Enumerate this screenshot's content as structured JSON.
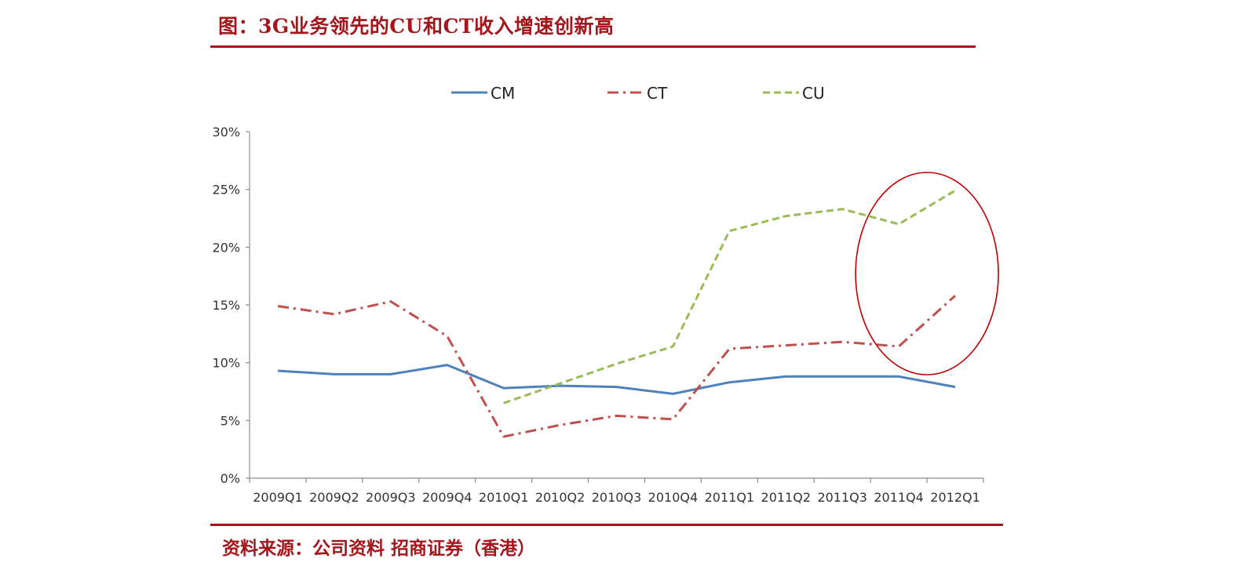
{
  "title": "图：3G业务领先的CU和CT收入增速创新高",
  "source": "资料来源：公司资料 招商证券（香港）",
  "chart_data": {
    "type": "line",
    "categories": [
      "2009Q1",
      "2009Q2",
      "2009Q3",
      "2009Q4",
      "2010Q1",
      "2010Q2",
      "2010Q3",
      "2010Q4",
      "2011Q1",
      "2011Q2",
      "2011Q3",
      "2011Q4",
      "2012Q1"
    ],
    "ylim": [
      0,
      30
    ],
    "yticks": [
      "0%",
      "5%",
      "10%",
      "15%",
      "20%",
      "25%",
      "30%"
    ],
    "grid": false,
    "legend_position": "top",
    "series": [
      {
        "name": "CM",
        "color": "#4f81bd",
        "style": "solid",
        "values": [
          9.3,
          9.0,
          9.0,
          9.8,
          7.8,
          8.0,
          7.9,
          7.3,
          8.3,
          8.8,
          8.8,
          8.8,
          7.9
        ]
      },
      {
        "name": "CT",
        "color": "#c0504d",
        "style": "dash-dot",
        "values": [
          14.9,
          14.2,
          15.3,
          12.3,
          3.6,
          4.6,
          5.4,
          5.1,
          11.2,
          11.5,
          11.8,
          11.4,
          15.8
        ]
      },
      {
        "name": "CU",
        "color": "#9bbb59",
        "style": "dashed",
        "values": [
          null,
          null,
          null,
          null,
          6.5,
          8.2,
          9.9,
          11.4,
          21.4,
          22.7,
          23.3,
          22.0,
          24.9
        ]
      }
    ],
    "annotation": {
      "type": "ellipse",
      "color": "#c00000",
      "highlights": [
        "2011Q4",
        "2012Q1"
      ]
    }
  }
}
